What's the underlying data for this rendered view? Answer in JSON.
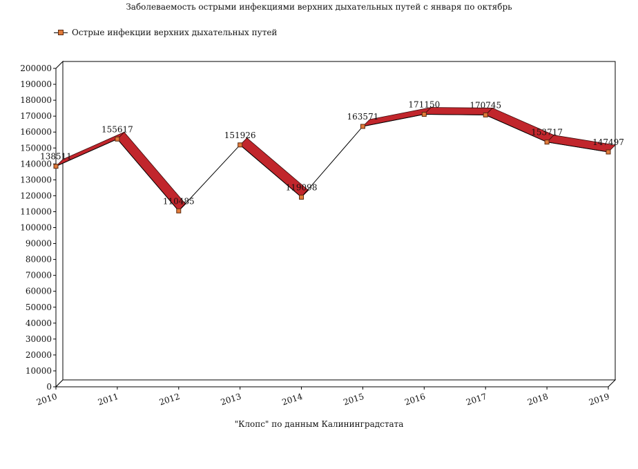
{
  "chart_data": {
    "type": "line",
    "title": "Заболеваемость острыми инфекциями верхних дыхательных путей с января по октябрь",
    "categories": [
      "2010",
      "2011",
      "2012",
      "2013",
      "2014",
      "2015",
      "2016",
      "2017",
      "2018",
      "2019"
    ],
    "series": [
      {
        "name": "Острые инфекции верхних дыхательных путей",
        "values": [
          138511,
          155617,
          110485,
          151926,
          119098,
          163571,
          171150,
          170745,
          153717,
          147497
        ],
        "labels": [
          "138511",
          "155617",
          "110485",
          "151926",
          "119098",
          "163571",
          "171150",
          "170745",
          "153717",
          "147497"
        ]
      }
    ],
    "ylim": [
      0,
      200000
    ],
    "ytick_step": 10000,
    "grid": false,
    "legend": "top-left",
    "source": "\"Клопс\" по данным Калининградстата",
    "colors": {
      "ribbon": "#c1262c",
      "marker": "#e07a3a",
      "line": "#000000"
    }
  }
}
